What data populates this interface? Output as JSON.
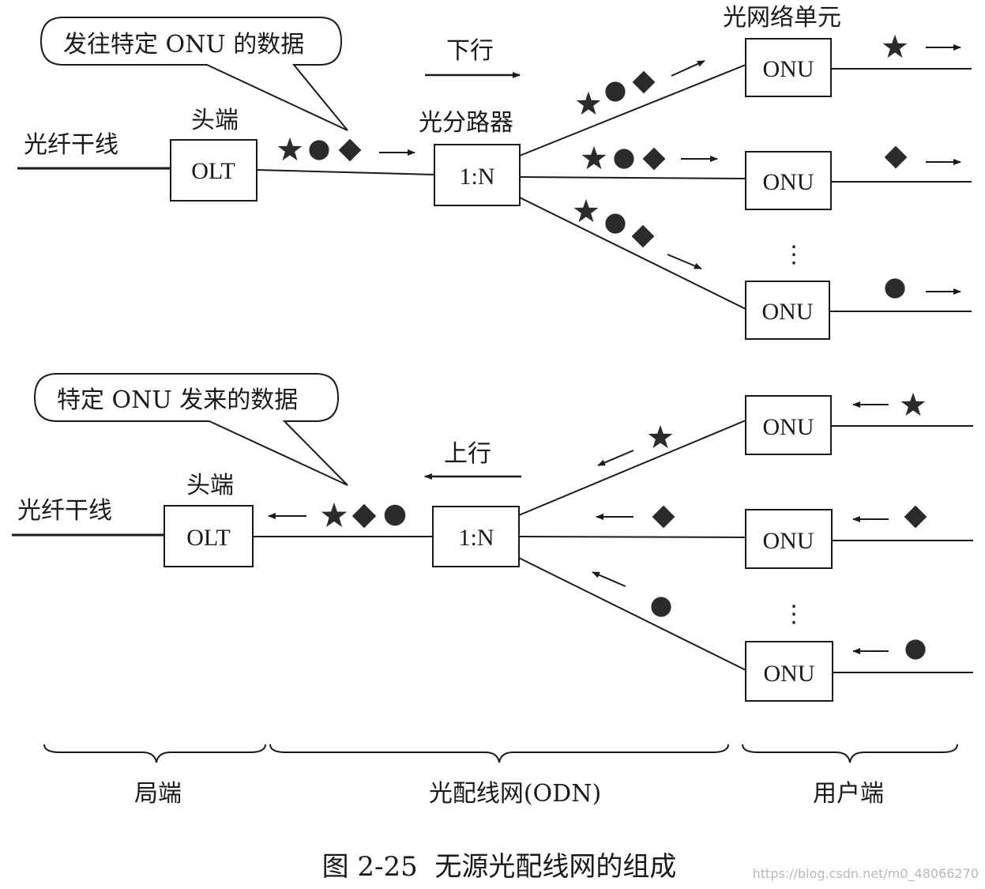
{
  "downstream": {
    "bubble": "发往特定 ONU 的数据",
    "fiber_label": "光纤干线",
    "headend_label": "头端",
    "olt": "OLT",
    "direction": "下行",
    "splitter_label": "光分路器",
    "splitter": "1:N",
    "onu_unit_label": "光网络单元",
    "onu": [
      "ONU",
      "ONU",
      "ONU"
    ],
    "ellipsis": "⋮"
  },
  "upstream": {
    "bubble": "特定 ONU 发来的数据",
    "fiber_label": "光纤干线",
    "headend_label": "头端",
    "olt": "OLT",
    "direction": "上行",
    "splitter": "1:N",
    "onu": [
      "ONU",
      "ONU",
      "ONU"
    ],
    "ellipsis": "⋮"
  },
  "sections": {
    "office": "局端",
    "odn": "光配线网(ODN)",
    "user": "用户端"
  },
  "caption": "图 2-25  无源光配线网的组成",
  "watermark": "https://blog.csdn.net/m0_48066270",
  "colors": {
    "ink": "#1a1a1a",
    "symbol": "#2b2b2b"
  },
  "symbols": [
    "star",
    "circle",
    "diamond"
  ]
}
